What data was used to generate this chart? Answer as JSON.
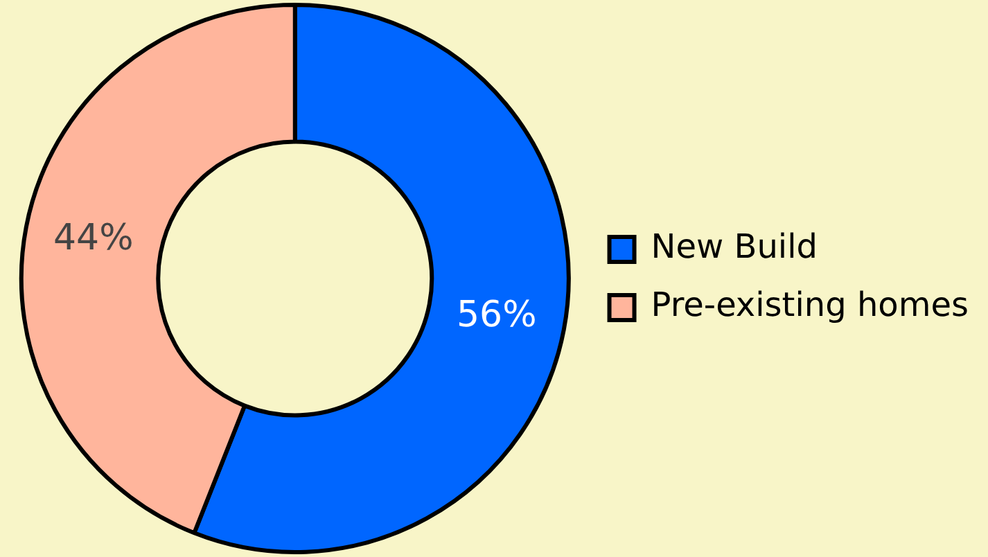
{
  "chart_data": {
    "type": "donut",
    "categories": [
      "New Build",
      "Pre-existing homes"
    ],
    "values": [
      56,
      44
    ],
    "colors": [
      "#0066ff",
      "#ffb59c"
    ],
    "value_labels": [
      "56%",
      "44%"
    ],
    "legend": "right"
  }
}
